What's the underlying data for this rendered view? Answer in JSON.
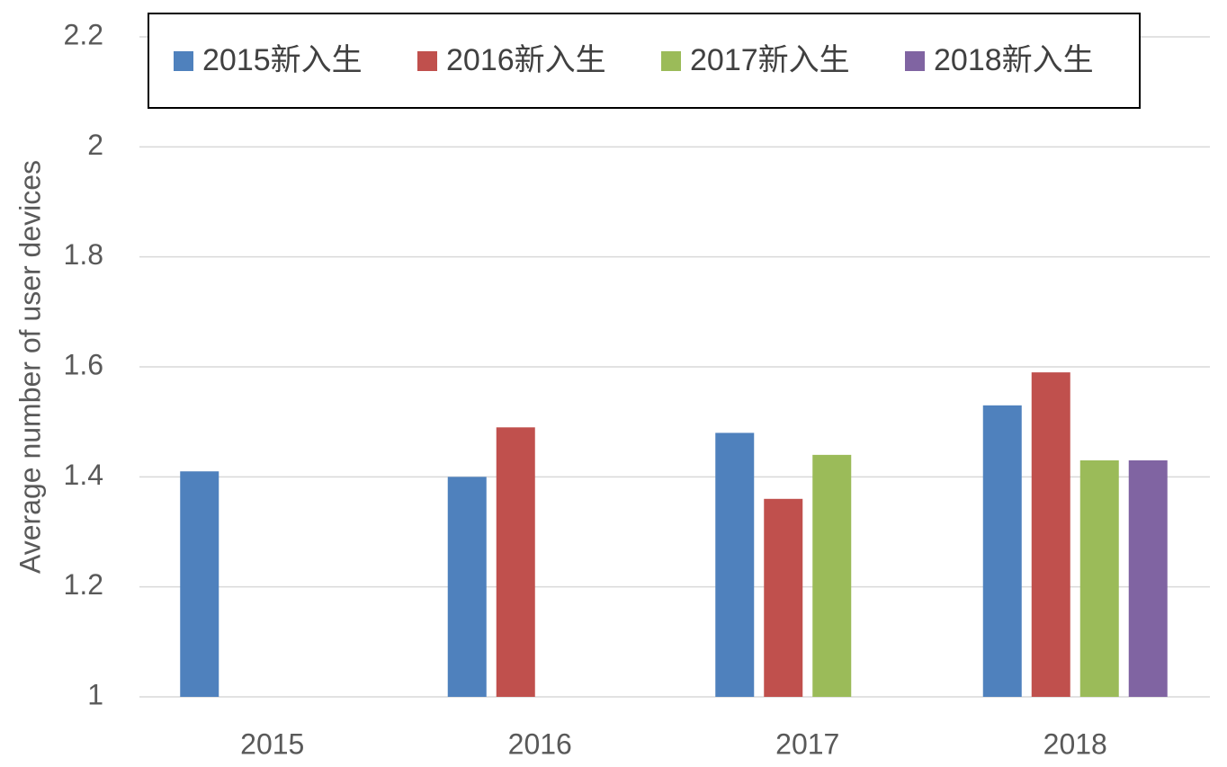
{
  "chart_data": {
    "type": "bar",
    "y_label": "Average number of user devices",
    "categories": [
      "2015",
      "2016",
      "2017",
      "2018"
    ],
    "series": [
      {
        "name": "2015新入生",
        "color": "#4f81bd",
        "values": [
          1.41,
          1.4,
          1.48,
          1.53
        ]
      },
      {
        "name": "2016新入生",
        "color": "#c0504d",
        "values": [
          null,
          1.49,
          1.36,
          1.59
        ]
      },
      {
        "name": "2017新入生",
        "color": "#9bbb59",
        "values": [
          null,
          null,
          1.44,
          1.43
        ]
      },
      {
        "name": "2018新入生",
        "color": "#8064a2",
        "values": [
          null,
          null,
          null,
          1.43
        ]
      }
    ],
    "ylim": [
      1,
      2.2
    ],
    "yticks": [
      1,
      1.2,
      1.4,
      1.6,
      1.8,
      2,
      2.2
    ],
    "grid": true
  }
}
